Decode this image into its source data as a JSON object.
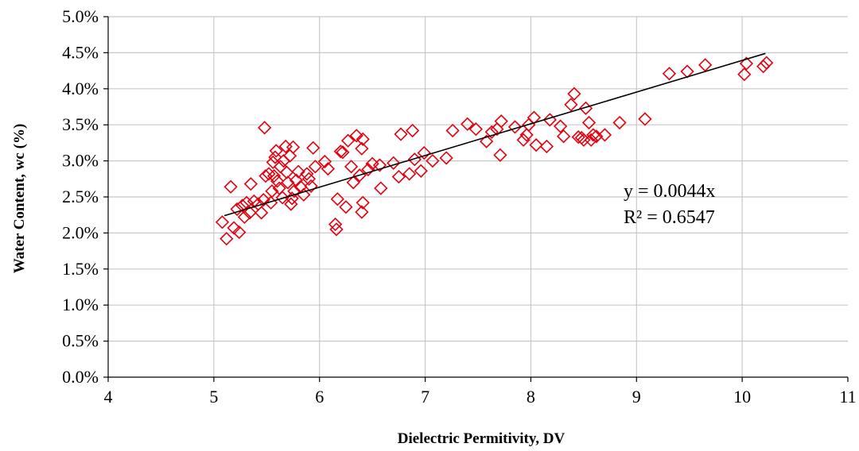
{
  "chart_data": {
    "type": "scatter",
    "xlabel": "Dielectric Permitivity, DV",
    "ylabel": "Water Content, wc (%)",
    "xlim": [
      4,
      11
    ],
    "ylim": [
      0.0,
      5.0
    ],
    "xticks": [
      "4",
      "5",
      "6",
      "7",
      "8",
      "9",
      "10",
      "11"
    ],
    "yticks": [
      "0.0%",
      "0.5%",
      "1.0%",
      "1.5%",
      "2.0%",
      "2.5%",
      "3.0%",
      "3.5%",
      "4.0%",
      "4.5%",
      "5.0%"
    ],
    "grid": true,
    "marker": "open-diamond",
    "marker_color": "#e3000f",
    "trendline": {
      "type": "linear",
      "x": [
        5.1,
        10.22
      ],
      "y": [
        2.24,
        4.49
      ]
    },
    "annotations": {
      "equation": "y = 0.0044x",
      "r2": "R² = 0.6547"
    },
    "series": [
      {
        "points": [
          [
            5.08,
            2.15
          ],
          [
            5.12,
            1.92
          ],
          [
            5.16,
            2.64
          ],
          [
            5.19,
            2.07
          ],
          [
            5.22,
            2.33
          ],
          [
            5.24,
            2.01
          ],
          [
            5.27,
            2.38
          ],
          [
            5.29,
            2.22
          ],
          [
            5.31,
            2.42
          ],
          [
            5.34,
            2.28
          ],
          [
            5.35,
            2.68
          ],
          [
            5.38,
            2.44
          ],
          [
            5.42,
            2.4
          ],
          [
            5.45,
            2.28
          ],
          [
            5.47,
            2.46
          ],
          [
            5.48,
            3.46
          ],
          [
            5.49,
            2.79
          ],
          [
            5.52,
            2.82
          ],
          [
            5.54,
            2.42
          ],
          [
            5.55,
            2.58
          ],
          [
            5.56,
            2.98
          ],
          [
            5.57,
            2.79
          ],
          [
            5.58,
            3.05
          ],
          [
            5.59,
            3.14
          ],
          [
            5.6,
            2.72
          ],
          [
            5.62,
            2.62
          ],
          [
            5.63,
            2.92
          ],
          [
            5.65,
            2.49
          ],
          [
            5.66,
            3.0
          ],
          [
            5.68,
            3.2
          ],
          [
            5.69,
            2.84
          ],
          [
            5.7,
            2.7
          ],
          [
            5.72,
            3.07
          ],
          [
            5.73,
            2.4
          ],
          [
            5.74,
            2.48
          ],
          [
            5.75,
            3.19
          ],
          [
            5.76,
            2.58
          ],
          [
            5.78,
            2.73
          ],
          [
            5.8,
            2.85
          ],
          [
            5.82,
            2.64
          ],
          [
            5.85,
            2.53
          ],
          [
            5.88,
            2.82
          ],
          [
            5.9,
            2.75
          ],
          [
            5.92,
            2.65
          ],
          [
            5.94,
            3.18
          ],
          [
            5.96,
            2.92
          ],
          [
            6.05,
            2.99
          ],
          [
            6.08,
            2.89
          ],
          [
            6.15,
            2.12
          ],
          [
            6.16,
            2.05
          ],
          [
            6.17,
            2.47
          ],
          [
            6.2,
            3.13
          ],
          [
            6.22,
            3.12
          ],
          [
            6.25,
            2.36
          ],
          [
            6.27,
            3.28
          ],
          [
            6.3,
            2.92
          ],
          [
            6.32,
            2.7
          ],
          [
            6.35,
            3.35
          ],
          [
            6.38,
            2.8
          ],
          [
            6.4,
            3.17
          ],
          [
            6.4,
            2.29
          ],
          [
            6.41,
            3.3
          ],
          [
            6.41,
            2.42
          ],
          [
            6.46,
            2.88
          ],
          [
            6.5,
            2.96
          ],
          [
            6.57,
            2.94
          ],
          [
            6.58,
            2.62
          ],
          [
            6.7,
            2.97
          ],
          [
            6.75,
            2.78
          ],
          [
            6.77,
            3.37
          ],
          [
            6.85,
            2.82
          ],
          [
            6.88,
            3.42
          ],
          [
            6.9,
            3.02
          ],
          [
            6.96,
            2.86
          ],
          [
            6.99,
            3.11
          ],
          [
            7.07,
            3.0
          ],
          [
            7.2,
            3.04
          ],
          [
            7.26,
            3.42
          ],
          [
            7.4,
            3.51
          ],
          [
            7.48,
            3.44
          ],
          [
            7.58,
            3.27
          ],
          [
            7.63,
            3.4
          ],
          [
            7.68,
            3.44
          ],
          [
            7.71,
            3.08
          ],
          [
            7.72,
            3.55
          ],
          [
            7.85,
            3.47
          ],
          [
            7.93,
            3.29
          ],
          [
            7.96,
            3.36
          ],
          [
            7.98,
            3.5
          ],
          [
            8.03,
            3.6
          ],
          [
            8.05,
            3.22
          ],
          [
            8.15,
            3.2
          ],
          [
            8.18,
            3.57
          ],
          [
            8.28,
            3.48
          ],
          [
            8.31,
            3.34
          ],
          [
            8.38,
            3.78
          ],
          [
            8.41,
            3.93
          ],
          [
            8.45,
            3.33
          ],
          [
            8.48,
            3.32
          ],
          [
            8.5,
            3.29
          ],
          [
            8.52,
            3.73
          ],
          [
            8.55,
            3.53
          ],
          [
            8.57,
            3.29
          ],
          [
            8.59,
            3.36
          ],
          [
            8.62,
            3.34
          ],
          [
            8.7,
            3.36
          ],
          [
            8.84,
            3.53
          ],
          [
            9.08,
            3.58
          ],
          [
            9.31,
            4.21
          ],
          [
            9.48,
            4.24
          ],
          [
            9.65,
            4.33
          ],
          [
            10.02,
            4.2
          ],
          [
            10.04,
            4.35
          ],
          [
            10.2,
            4.31
          ],
          [
            10.23,
            4.36
          ]
        ]
      }
    ]
  }
}
